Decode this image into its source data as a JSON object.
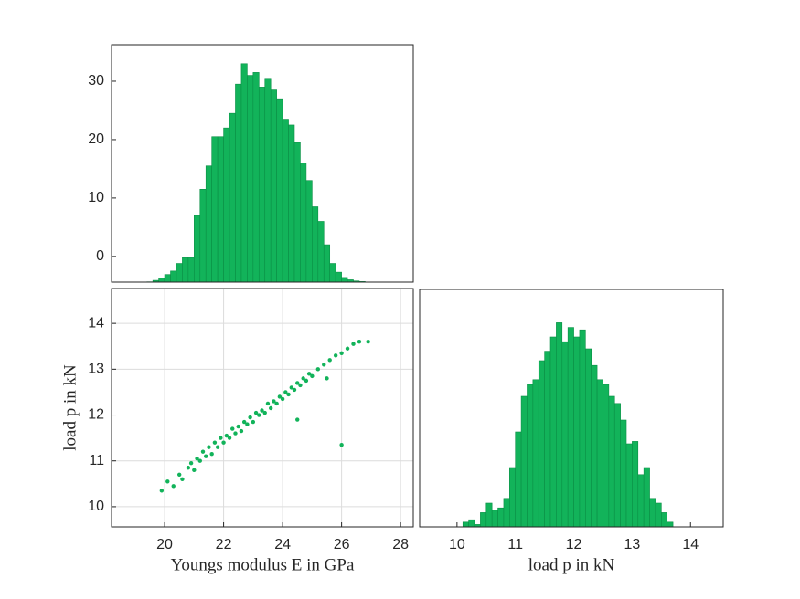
{
  "chart_data": [
    {
      "type": "histogram",
      "color": "#12b35a",
      "bins": [
        19.2,
        19.4,
        19.6,
        19.8,
        20.0,
        20.2,
        20.4,
        20.6,
        20.8,
        21.0,
        21.2,
        21.4,
        21.6,
        21.8,
        22.0,
        22.2,
        22.4,
        22.6,
        22.8,
        23.0,
        23.2,
        23.4,
        23.6,
        23.8,
        24.0,
        24.2,
        24.4,
        24.6,
        24.8,
        25.0,
        25.2,
        25.4,
        25.6,
        25.8,
        26.0,
        26.2,
        26.4,
        26.6,
        26.8,
        27.0
      ],
      "values": [
        -4.4,
        -4.35,
        -4.1,
        -3.7,
        -3.1,
        -2.5,
        -1.2,
        -0.2,
        -0.2,
        7,
        11.5,
        15.5,
        20.5,
        20.5,
        22,
        24.5,
        29.5,
        33,
        31,
        31.5,
        29,
        30.5,
        28.5,
        27,
        23.5,
        22.5,
        19.5,
        16,
        13,
        8.5,
        6,
        2,
        -1.2,
        -2.7,
        -3.6,
        -4.0,
        -4.2,
        -4.3,
        -4.4
      ],
      "xlim": [
        18.2,
        28.43
      ],
      "ylim": [
        -4.4,
        36.25
      ],
      "yticks": [
        0,
        10,
        20,
        30
      ],
      "grid": false
    },
    {
      "type": "scatter",
      "color": "#12b35a",
      "x": [
        19.9,
        20.1,
        20.3,
        20.5,
        20.6,
        20.8,
        20.9,
        21.0,
        21.1,
        21.2,
        21.3,
        21.4,
        21.5,
        21.6,
        21.7,
        21.8,
        21.9,
        22.0,
        22.1,
        22.2,
        22.3,
        22.4,
        22.5,
        22.6,
        22.7,
        22.8,
        22.9,
        23.0,
        23.1,
        23.2,
        23.3,
        23.4,
        23.5,
        23.6,
        23.7,
        23.8,
        23.9,
        24.0,
        24.1,
        24.2,
        24.3,
        24.4,
        24.5,
        24.6,
        24.7,
        24.8,
        24.9,
        25.0,
        25.2,
        25.4,
        25.6,
        25.8,
        26.0,
        26.2,
        26.4,
        26.6,
        26.9,
        24.5,
        26.0,
        25.5
      ],
      "values": [
        10.35,
        10.55,
        10.45,
        10.7,
        10.6,
        10.85,
        10.95,
        10.8,
        11.05,
        11.0,
        11.2,
        11.1,
        11.3,
        11.15,
        11.4,
        11.3,
        11.5,
        11.4,
        11.55,
        11.5,
        11.7,
        11.6,
        11.75,
        11.65,
        11.85,
        11.8,
        11.95,
        11.85,
        12.05,
        12.0,
        12.1,
        12.05,
        12.25,
        12.15,
        12.3,
        12.25,
        12.4,
        12.35,
        12.5,
        12.45,
        12.6,
        12.55,
        12.7,
        12.65,
        12.8,
        12.75,
        12.9,
        12.85,
        13.0,
        13.1,
        13.2,
        13.3,
        13.35,
        13.45,
        13.55,
        13.6,
        13.6,
        11.9,
        11.35,
        12.8
      ],
      "xlim": [
        18.2,
        28.43
      ],
      "ylim": [
        9.56,
        14.76
      ],
      "xticks": [
        20,
        22,
        24,
        26,
        28
      ],
      "yticks": [
        10,
        11,
        12,
        13,
        14
      ],
      "grid": true,
      "xlabel": "Youngs modulus E in GPa",
      "ylabel": "load p in kN"
    },
    {
      "type": "histogram",
      "color": "#12b35a",
      "bins": [
        10.1,
        10.2,
        10.3,
        10.4,
        10.5,
        10.6,
        10.7,
        10.8,
        10.9,
        11.0,
        11.1,
        11.2,
        11.3,
        11.4,
        11.5,
        11.6,
        11.7,
        11.8,
        11.9,
        12.0,
        12.1,
        12.2,
        12.3,
        12.4,
        12.5,
        12.6,
        12.7,
        12.8,
        12.9,
        13.0,
        13.1,
        13.2,
        13.3,
        13.4,
        13.5,
        13.6,
        13.7
      ],
      "values": [
        2,
        3,
        1,
        6,
        10,
        7,
        8,
        12,
        25,
        40,
        55,
        60,
        62,
        70,
        74,
        80,
        86,
        78,
        84,
        80,
        83,
        75,
        68,
        62,
        60,
        55,
        52,
        45,
        35,
        36,
        22,
        25,
        12,
        10,
        6,
        2
      ],
      "xlim": [
        9.36,
        14.56
      ],
      "ylim": [
        0,
        100
      ],
      "xticks": [
        10,
        11,
        12,
        13,
        14
      ],
      "grid": false,
      "xlabel": "load p in kN"
    }
  ]
}
